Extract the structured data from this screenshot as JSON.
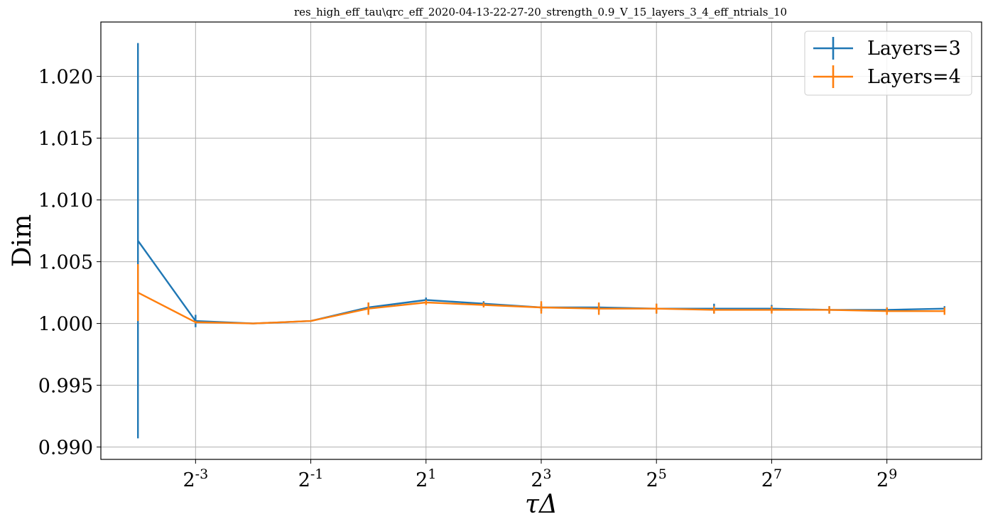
{
  "chart_data": {
    "type": "line",
    "title": "res_high_eff_tau\\qrc_eff_2020-04-13-22-27-20_strength_0.9_V_15_layers_3_4_eff_ntrials_10",
    "xlabel": "τΔ",
    "ylabel": "Dim",
    "x_scale": "log2",
    "x": [
      0.0625,
      0.125,
      0.25,
      0.5,
      1,
      2,
      4,
      8,
      16,
      32,
      64,
      128,
      256,
      512,
      1024
    ],
    "xlim": [
      0.04,
      1600
    ],
    "ylim": [
      0.989,
      1.0244
    ],
    "x_ticks": [
      {
        "value": 0.125,
        "base": "2",
        "exp": "-3"
      },
      {
        "value": 0.5,
        "base": "2",
        "exp": "-1"
      },
      {
        "value": 2,
        "base": "2",
        "exp": "1"
      },
      {
        "value": 8,
        "base": "2",
        "exp": "3"
      },
      {
        "value": 32,
        "base": "2",
        "exp": "5"
      },
      {
        "value": 128,
        "base": "2",
        "exp": "7"
      },
      {
        "value": 512,
        "base": "2",
        "exp": "9"
      }
    ],
    "y_ticks": [
      {
        "value": 0.99,
        "label": "0.990"
      },
      {
        "value": 0.995,
        "label": "0.995"
      },
      {
        "value": 1.0,
        "label": "1.000"
      },
      {
        "value": 1.005,
        "label": "1.005"
      },
      {
        "value": 1.01,
        "label": "1.010"
      },
      {
        "value": 1.015,
        "label": "1.015"
      },
      {
        "value": 1.02,
        "label": "1.020"
      }
    ],
    "grid": true,
    "legend_position": "top-right",
    "series": [
      {
        "name": "Layers=3",
        "color": "#1f77b4",
        "values": [
          1.0067,
          1.0002,
          1.0,
          1.0002,
          1.0013,
          1.0019,
          1.0016,
          1.0013,
          1.0013,
          1.0012,
          1.0012,
          1.0012,
          1.0011,
          1.0011,
          1.0012
        ],
        "errors": [
          0.016,
          0.0005,
          0.0,
          0.0,
          0.0004,
          0.0002,
          0.0002,
          0.0003,
          0.0003,
          0.0004,
          0.0004,
          0.0003,
          0.0003,
          0.0002,
          0.0002
        ]
      },
      {
        "name": "Layers=4",
        "color": "#ff7f0e",
        "values": [
          1.0025,
          1.0001,
          1.0,
          1.0002,
          1.0012,
          1.0017,
          1.0015,
          1.0013,
          1.0012,
          1.0012,
          1.0011,
          1.0011,
          1.0011,
          1.001,
          1.001
        ],
        "errors": [
          0.0023,
          0.0001,
          0.0,
          0.0,
          0.0005,
          0.0002,
          0.0002,
          0.0005,
          0.0005,
          0.0004,
          0.0003,
          0.0003,
          0.0003,
          0.0003,
          0.0003
        ]
      }
    ]
  }
}
